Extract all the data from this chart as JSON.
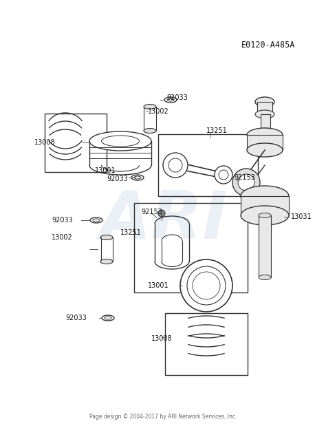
{
  "title_code": "E0120-A485A",
  "footer": "Page design © 2004-2017 by ARI Network Services, Inc.",
  "background_color": "#ffffff",
  "line_color": "#333333",
  "label_color": "#111111",
  "label_fontsize": 7.0,
  "watermark": "ARI",
  "watermark_color": "#c8d4e8",
  "watermark_alpha": 0.35,
  "watermark_fontsize": 70
}
